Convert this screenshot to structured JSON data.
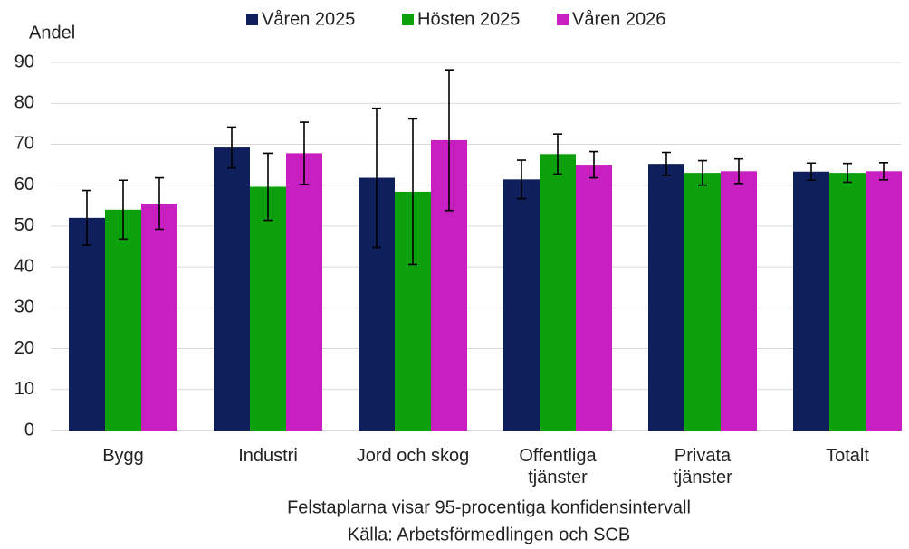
{
  "chart_data": {
    "type": "bar",
    "y_label": "Andel",
    "notes": [
      "Felstaplarna visar 95-procentiga konfidensintervall",
      "Källa: Arbetsförmedlingen och SCB"
    ],
    "categories": [
      "Bygg",
      "Industri",
      "Jord och skog",
      "Offentliga\ntjänster",
      "Privata\ntjänster",
      "Totalt"
    ],
    "series": [
      {
        "name": "Våren 2025",
        "color": "#0e1f5b",
        "values": [
          52,
          69.2,
          61.8,
          61.4,
          65.2,
          63.3
        ],
        "errors": [
          6.7,
          5,
          17,
          4.7,
          2.8,
          2.1
        ]
      },
      {
        "name": "Hösten 2025",
        "color": "#0ca10c",
        "values": [
          54,
          59.6,
          58.4,
          67.6,
          63,
          63
        ],
        "errors": [
          7.2,
          8.2,
          17.8,
          4.9,
          3,
          2.3
        ]
      },
      {
        "name": "Våren 2026",
        "color": "#c81fc0",
        "values": [
          55.5,
          67.8,
          71,
          65,
          63.4,
          63.4
        ],
        "errors": [
          6.3,
          7.6,
          17.2,
          3.2,
          3,
          2.1
        ]
      }
    ],
    "ylim": [
      0,
      90
    ],
    "yticks": [
      0,
      10,
      20,
      30,
      40,
      50,
      60,
      70,
      80,
      90
    ],
    "grid": true,
    "legend": "top"
  }
}
